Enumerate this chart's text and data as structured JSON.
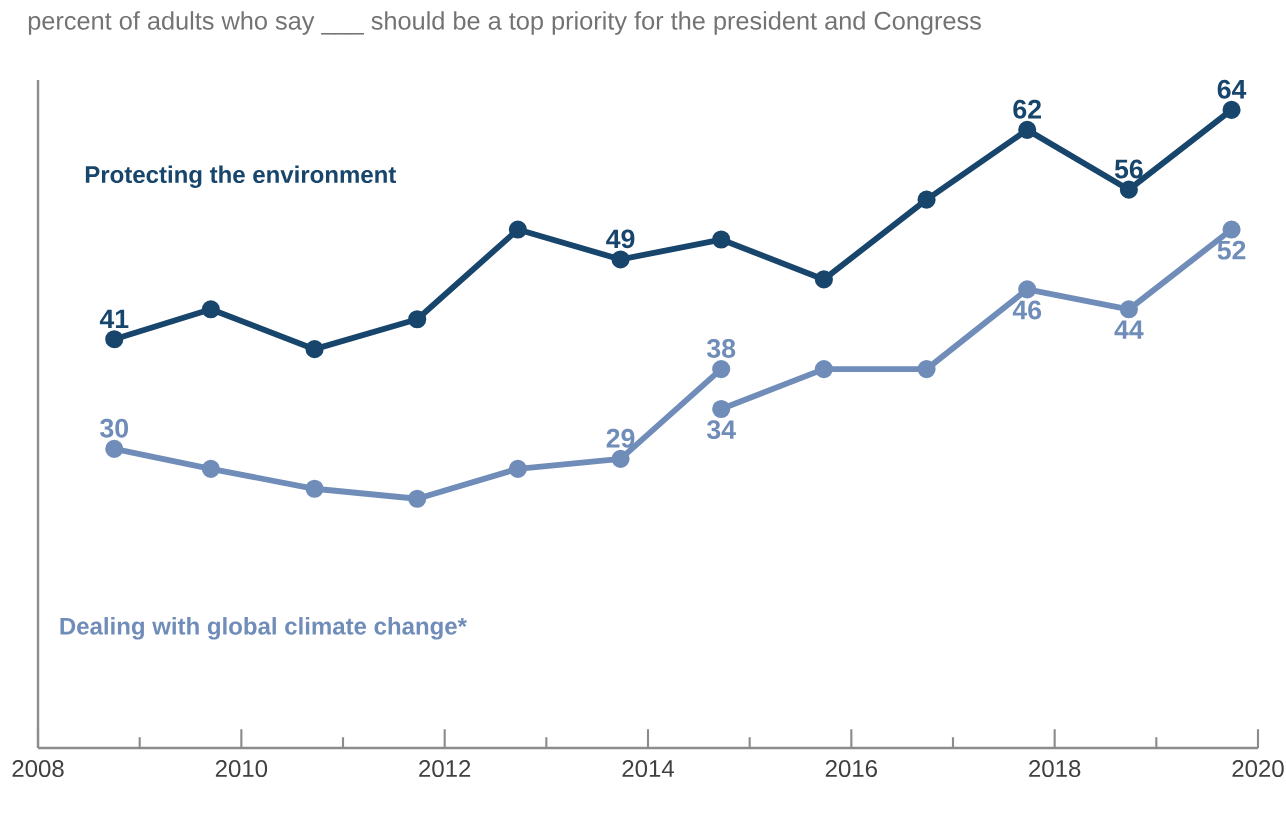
{
  "chart_data": {
    "type": "line",
    "title": "percent of adults who say ___ should be a top priority for the president and Congress",
    "xlim": [
      2008,
      2020
    ],
    "xticks": [
      2008,
      {
        "value": 2009,
        "label": null
      },
      2010,
      {
        "value": 2011,
        "label": null
      },
      2012,
      {
        "value": 2013,
        "label": null
      },
      2014,
      {
        "value": 2015,
        "label": null
      },
      2016,
      {
        "value": 2017,
        "label": null
      },
      2018,
      {
        "value": 2019,
        "label": null
      },
      2020
    ],
    "ylim": [
      0,
      67
    ],
    "tick_labels": "x",
    "grid": false,
    "marker": "circle",
    "line_style": "solid",
    "series": [
      {
        "name": "Protecting the environment",
        "color": "#17456b",
        "x": [
          2008.75,
          2009.7,
          2010.72,
          2011.73,
          2012.72,
          2013.73,
          2014.72,
          2015.73,
          2016.74,
          2017.73,
          2018.73,
          2019.74
        ],
        "values": [
          41,
          44,
          40,
          43,
          52,
          49,
          51,
          47,
          55,
          62,
          56,
          64
        ],
        "value_labels": [
          "41",
          null,
          null,
          null,
          null,
          "49",
          null,
          null,
          null,
          "62",
          "56",
          "64"
        ]
      },
      {
        "name": "Dealing with global climate change*",
        "color": "#6f8db8",
        "x": [
          2008.75,
          2009.7,
          2010.72,
          2011.73,
          2012.72,
          2013.73,
          2014.72
        ],
        "values": [
          30,
          28,
          26,
          25,
          28,
          29,
          38
        ],
        "value_labels": [
          "30",
          null,
          null,
          null,
          null,
          "29",
          "38"
        ]
      },
      {
        "color": "#6f8db8",
        "x": [
          2014.72,
          2015.73,
          2016.74,
          2017.73,
          2018.73,
          2019.74
        ],
        "values": [
          34,
          38,
          38,
          46,
          44,
          52
        ],
        "value_labels": [
          "34",
          null,
          null,
          "46",
          "44",
          "52"
        ]
      }
    ]
  }
}
